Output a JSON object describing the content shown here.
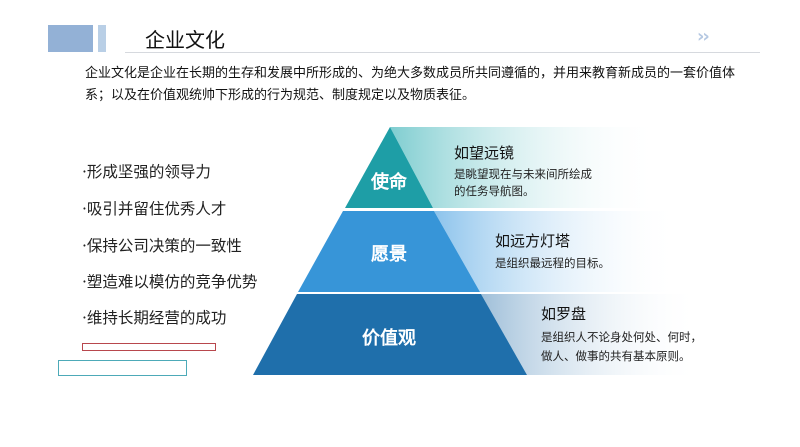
{
  "header": {
    "title": "企业文化",
    "chevron_icon": "double-chevron-right"
  },
  "intro": "企业文化是企业在长期的生存和发展中所形成的、为绝大多数成员所共同遵循的，并用来教育新成员的一套价值体系；以及在价值观统帅下形成的行为规范、制度规定以及物质表征。",
  "bullets": [
    "·形成坚强的领导力",
    "·吸引并留住优秀人才",
    "·保持公司决策的一致性",
    "·塑造难以模仿的竞争优势",
    "·维持长期经营的成功"
  ],
  "pyramid": [
    {
      "label": "使命",
      "title": "如望远镜",
      "desc": [
        "是眺望现在与未来间所绘成",
        "的任务导航图。"
      ],
      "color": "#1e9ea6"
    },
    {
      "label": "愿景",
      "title": "如远方灯塔",
      "desc": [
        "是组织最远程的目标。"
      ],
      "color": "#3795d8"
    },
    {
      "label": "价值观",
      "title": "如罗盘",
      "desc": [
        "是组织人不论身处何处、何时，",
        "做人、做事的共有基本原则。"
      ],
      "color": "#1f6fab"
    }
  ]
}
